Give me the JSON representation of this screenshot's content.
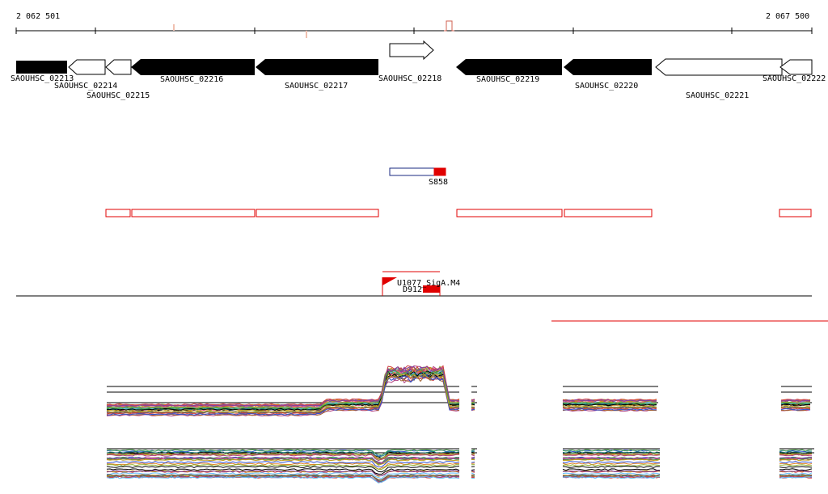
{
  "coords": {
    "start_label": "2 062 501",
    "end_label": "2 067 500"
  },
  "genes": [
    {
      "label": "SAOUHSC_02213",
      "strand": "+",
      "fill": "filled"
    },
    {
      "label": "SAOUHSC_02214",
      "strand": "-",
      "fill": "open"
    },
    {
      "label": "SAOUHSC_02215",
      "strand": "-",
      "fill": "open"
    },
    {
      "label": "SAOUHSC_02216",
      "strand": "-",
      "fill": "filled"
    },
    {
      "label": "SAOUHSC_02217",
      "strand": "-",
      "fill": "filled"
    },
    {
      "label": "SAOUHSC_02218",
      "strand": "+",
      "fill": "open"
    },
    {
      "label": "SAOUHSC_02219",
      "strand": "-",
      "fill": "filled"
    },
    {
      "label": "SAOUHSC_02220",
      "strand": "-",
      "fill": "filled"
    },
    {
      "label": "SAOUHSC_02221",
      "strand": "-",
      "fill": "open"
    },
    {
      "label": "SAOUHSC_02222",
      "strand": "-",
      "fill": "open"
    }
  ],
  "features": [
    {
      "label": "S858"
    },
    {
      "label": "U1077_SigA.M4"
    },
    {
      "label": "D912"
    }
  ],
  "colors": {
    "red": "#e00000",
    "navy": "#1a2a80",
    "tick_mark": "#e8a090",
    "axis": "#000000",
    "expression_palette": [
      "#000000",
      "#3050d0",
      "#d04040",
      "#40a040",
      "#c0a020",
      "#8040a0",
      "#e08020",
      "#208080",
      "#a06030",
      "#606060",
      "#ff60a0",
      "#60c0ff",
      "#90b030",
      "#b04080"
    ]
  }
}
